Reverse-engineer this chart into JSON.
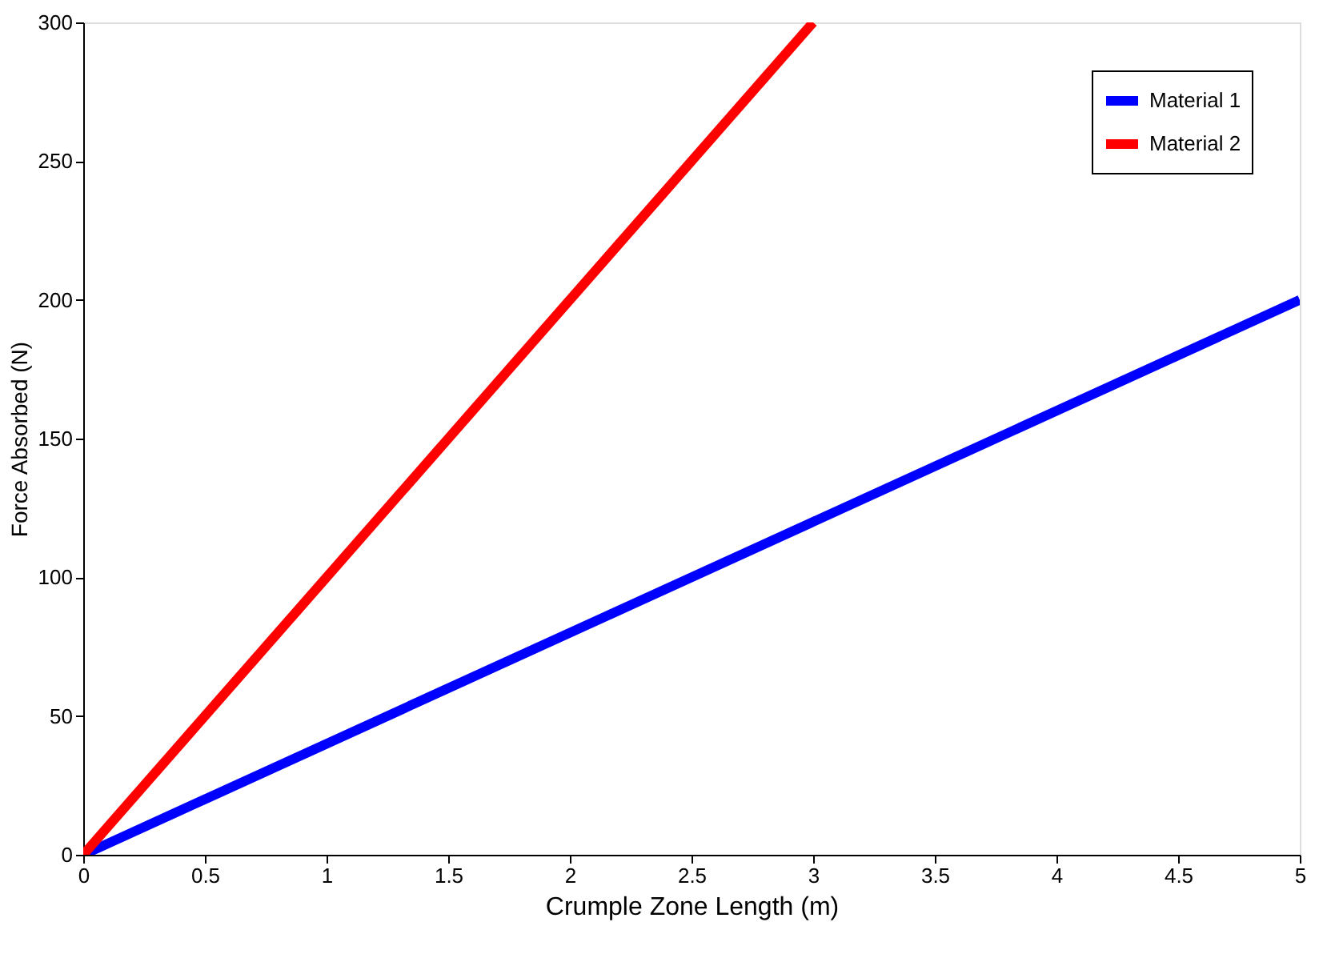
{
  "chart_data": {
    "type": "line",
    "xlabel": "Crumple Zone Length (m)",
    "ylabel": "Force Absorbed (N)",
    "xlim": [
      0,
      5
    ],
    "xticks": [
      0,
      0.5,
      1,
      1.5,
      2,
      2.5,
      3,
      3.5,
      4,
      4.5,
      5
    ],
    "ylim": [
      0,
      300
    ],
    "yticks": [
      0,
      50,
      100,
      150,
      200,
      250,
      300
    ],
    "grid": false,
    "legend": "top right",
    "marker": "none",
    "line_style": "solid",
    "series": [
      {
        "name": "Material 1",
        "color": "#0000ff",
        "x": [
          0,
          5
        ],
        "values": [
          0,
          200
        ]
      },
      {
        "name": "Material 2",
        "color": "#ff0000",
        "x": [
          0,
          3
        ],
        "values": [
          0,
          300
        ]
      }
    ]
  }
}
